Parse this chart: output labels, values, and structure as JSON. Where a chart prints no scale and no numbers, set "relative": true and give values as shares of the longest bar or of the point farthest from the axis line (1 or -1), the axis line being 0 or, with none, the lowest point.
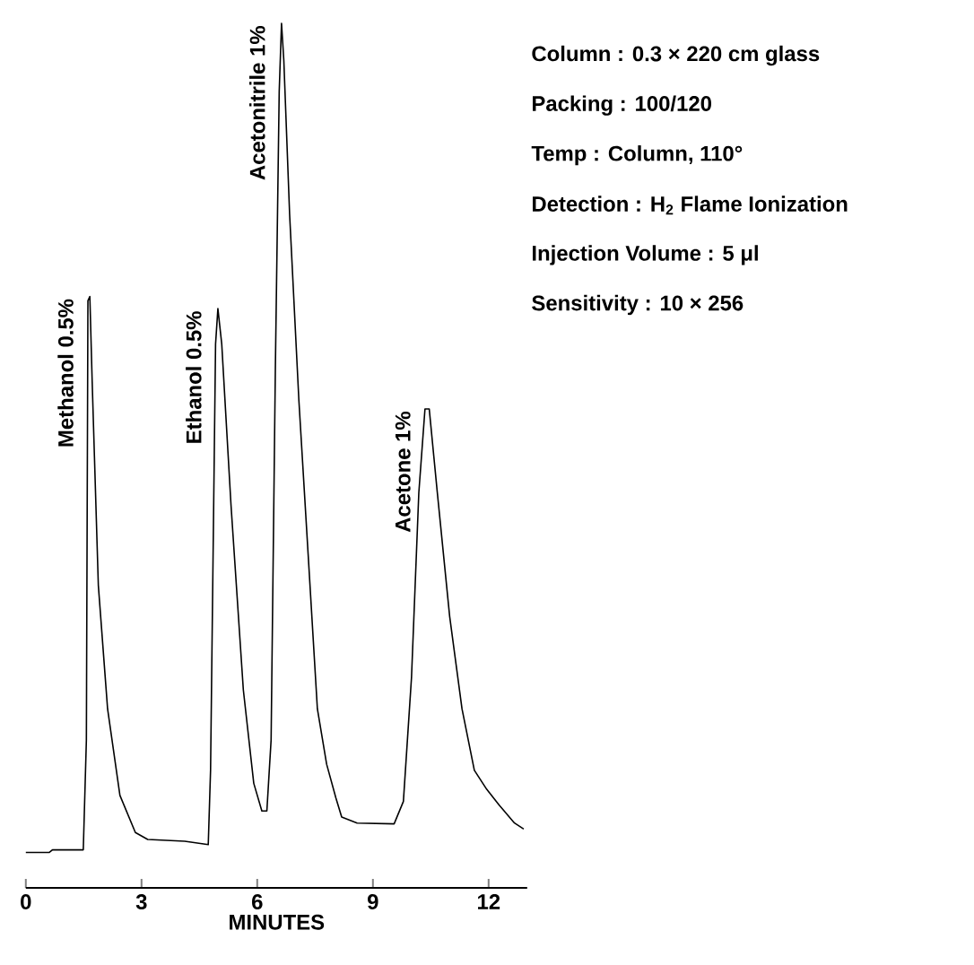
{
  "chart_data": {
    "type": "line",
    "relative": true,
    "xlabel": "MINUTES",
    "xlim": [
      0,
      13
    ],
    "xticks": [
      0,
      3,
      6,
      9,
      12
    ],
    "marker": "none",
    "line_style": "solid",
    "x": [
      0,
      0.61,
      0.69,
      1.49,
      1.57,
      1.61,
      1.66,
      1.72,
      1.88,
      2.12,
      2.44,
      2.84,
      3.16,
      4.12,
      4.73,
      4.79,
      4.92,
      4.98,
      5.08,
      5.32,
      5.64,
      5.91,
      6.12,
      6.25,
      6.36,
      6.47,
      6.57,
      6.63,
      6.69,
      6.84,
      7.08,
      7.32,
      7.56,
      7.8,
      8.04,
      8.19,
      8.59,
      9.55,
      9.79,
      10.0,
      10.19,
      10.35,
      10.46,
      10.67,
      10.99,
      11.31,
      11.63,
      11.95,
      12.27,
      12.67,
      12.91
    ],
    "series": [
      {
        "color": "#000000",
        "values": [
          0.041,
          0.041,
          0.044,
          0.044,
          0.171,
          0.679,
          0.684,
          0.586,
          0.35,
          0.207,
          0.107,
          0.064,
          0.056,
          0.054,
          0.05,
          0.136,
          0.629,
          0.67,
          0.629,
          0.443,
          0.229,
          0.121,
          0.089,
          0.089,
          0.171,
          0.6,
          0.921,
          1.0,
          0.957,
          0.779,
          0.564,
          0.386,
          0.207,
          0.143,
          0.104,
          0.082,
          0.075,
          0.074,
          0.1,
          0.243,
          0.457,
          0.554,
          0.554,
          0.457,
          0.314,
          0.207,
          0.136,
          0.114,
          0.096,
          0.075,
          0.068
        ]
      }
    ],
    "annotations": [
      {
        "text": "Methanol 0.5%",
        "x": 1.66,
        "y": 0.684
      },
      {
        "text": "Ethanol 0.5%",
        "x": 4.98,
        "y": 0.67
      },
      {
        "text": "Acetonitrile 1%",
        "x": 6.63,
        "y": 1.0
      },
      {
        "text": "Acetone 1%",
        "x": 10.4,
        "y": 0.554
      },
      "Column : 0.3 × 220 cm glass",
      "Packing : 100/120",
      "Temp : Column, 110°",
      "Detection : H$_{2}$ Flame Ionization",
      "Injection Volume : 5 μl",
      "Sensitivity : 10 × 256"
    ]
  }
}
